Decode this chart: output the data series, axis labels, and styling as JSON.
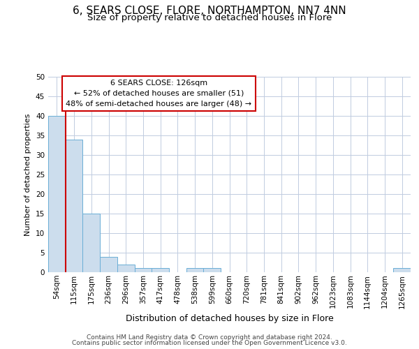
{
  "title1": "6, SEARS CLOSE, FLORE, NORTHAMPTON, NN7 4NN",
  "title2": "Size of property relative to detached houses in Flore",
  "xlabel": "Distribution of detached houses by size in Flore",
  "ylabel": "Number of detached properties",
  "categories": [
    "54sqm",
    "115sqm",
    "175sqm",
    "236sqm",
    "296sqm",
    "357sqm",
    "417sqm",
    "478sqm",
    "538sqm",
    "599sqm",
    "660sqm",
    "720sqm",
    "781sqm",
    "841sqm",
    "902sqm",
    "962sqm",
    "1023sqm",
    "1083sqm",
    "1144sqm",
    "1204sqm",
    "1265sqm"
  ],
  "values": [
    40,
    34,
    15,
    4,
    2,
    1,
    1,
    0,
    1,
    1,
    0,
    0,
    0,
    0,
    0,
    0,
    0,
    0,
    0,
    0,
    1
  ],
  "bar_color": "#ccdded",
  "bar_edge_color": "#6aaed6",
  "ylim": [
    0,
    50
  ],
  "yticks": [
    0,
    5,
    10,
    15,
    20,
    25,
    30,
    35,
    40,
    45,
    50
  ],
  "property_label": "6 SEARS CLOSE: 126sqm",
  "annotation_line1": "← 52% of detached houses are smaller (51)",
  "annotation_line2": "48% of semi-detached houses are larger (48) →",
  "annotation_box_color": "#ffffff",
  "annotation_box_edge": "#cc0000",
  "vline_color": "#cc0000",
  "footer1": "Contains HM Land Registry data © Crown copyright and database right 2024.",
  "footer2": "Contains public sector information licensed under the Open Government Licence v3.0.",
  "background_color": "#ffffff",
  "grid_color": "#c0cce0",
  "title1_fontsize": 11,
  "title2_fontsize": 9.5,
  "xlabel_fontsize": 9,
  "ylabel_fontsize": 8,
  "tick_fontsize": 7.5,
  "footer_fontsize": 6.5,
  "annot_fontsize": 8
}
